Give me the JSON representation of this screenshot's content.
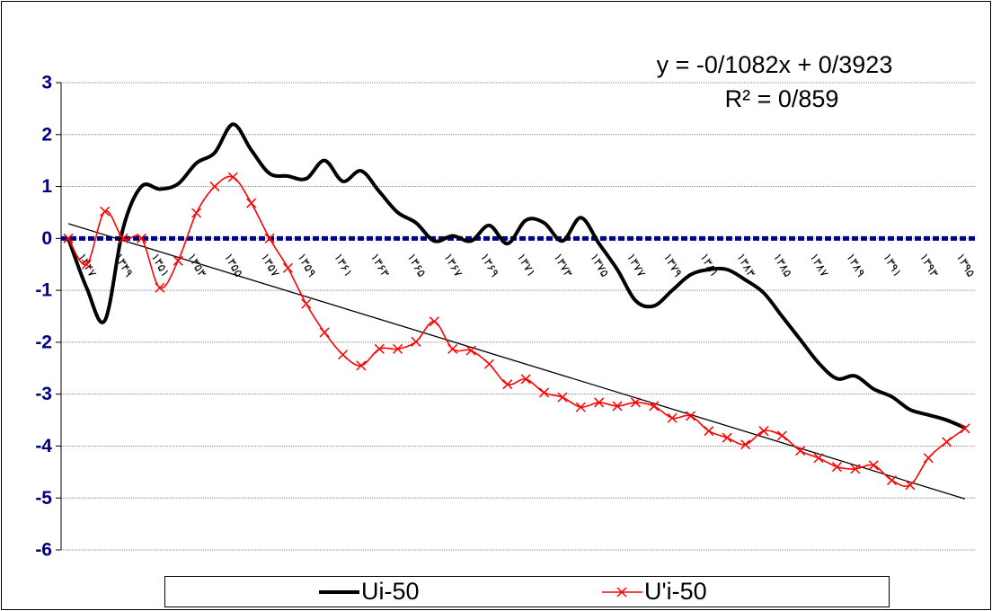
{
  "chart_data": {
    "type": "line",
    "categories": [
      null,
      "۱۳۴۷",
      null,
      "۱۳۴۹",
      null,
      "۱۳۵۱",
      null,
      "۱۳۵۳",
      null,
      "۱۳۵۵",
      null,
      "۱۳۵۷",
      null,
      "۱۳۵۹",
      null,
      "۱۳۶۱",
      null,
      "۱۳۶۳",
      null,
      "۱۳۶۵",
      null,
      "۱۳۶۷",
      null,
      "۱۳۶۹",
      null,
      "۱۳۷۱",
      null,
      "۱۳۷۳",
      null,
      "۱۳۷۵",
      null,
      "۱۳۷۷",
      null,
      "۱۳۷۹",
      null,
      "۱۳۸۱",
      null,
      "۱۳۸۳",
      null,
      "۱۳۸۵",
      null,
      "۱۳۸۷",
      null,
      "۱۳۸۹",
      null,
      "۱۳۹۱",
      null,
      "۱۳۹۳",
      null,
      "۱۳۹۵"
    ],
    "series": [
      {
        "name": "Ui-50",
        "color": "#000000",
        "marker": "none",
        "values": [
          0,
          -0.95,
          -1.58,
          0.2,
          1.0,
          0.95,
          1.05,
          1.45,
          1.65,
          2.2,
          1.7,
          1.25,
          1.2,
          1.15,
          1.5,
          1.1,
          1.3,
          0.9,
          0.5,
          0.3,
          -0.05,
          0.05,
          -0.05,
          0.25,
          -0.1,
          0.35,
          0.3,
          -0.05,
          0.4,
          -0.1,
          -0.6,
          -1.2,
          -1.3,
          -1.0,
          -0.7,
          -0.6,
          -0.6,
          -0.8,
          -1.05,
          -1.5,
          -1.95,
          -2.4,
          -2.7,
          -2.65,
          -2.9,
          -3.05,
          -3.3,
          -3.4,
          -3.5,
          -3.65
        ]
      },
      {
        "name": "U'i-50",
        "color": "#ff0000",
        "marker": "x",
        "values": [
          0,
          -0.5,
          0.52,
          0,
          0,
          -0.95,
          -0.43,
          0.49,
          1.0,
          1.18,
          0.68,
          0,
          -0.57,
          -1.26,
          -1.81,
          -2.24,
          -2.45,
          -2.13,
          -2.13,
          -1.99,
          -1.6,
          -2.13,
          -2.16,
          -2.42,
          -2.81,
          -2.71,
          -2.97,
          -3.06,
          -3.25,
          -3.16,
          -3.23,
          -3.16,
          -3.23,
          -3.46,
          -3.42,
          -3.71,
          -3.84,
          -3.97,
          -3.71,
          -3.8,
          -4.09,
          -4.23,
          -4.4,
          -4.44,
          -4.37,
          -4.66,
          -4.75,
          -4.23,
          -3.92,
          -3.66
        ]
      }
    ],
    "trendline": {
      "slope": -0.1082,
      "intercept": 0.3923,
      "color": "#000000",
      "equation": "y = -0/1082x + 0/3923",
      "r_squared": 0.859,
      "r_squared_label": "R² = 0/859"
    },
    "ylim": [
      -6,
      3
    ],
    "yticks": [
      -6,
      -5,
      -4,
      -3,
      -2,
      -1,
      0,
      1,
      2,
      3
    ],
    "grid": true,
    "smooth": true,
    "legend": "bottom",
    "axis_color": "#000080"
  }
}
